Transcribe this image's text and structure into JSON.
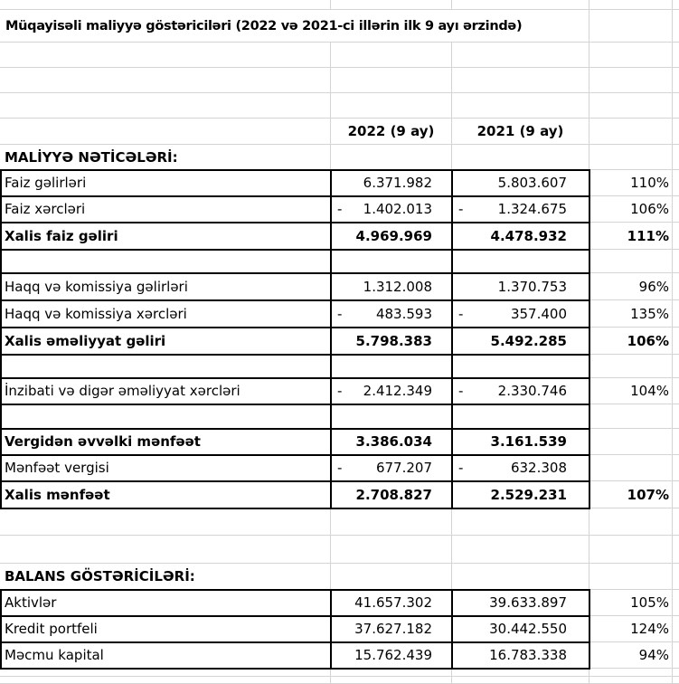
{
  "negative_prefix": "-",
  "rows": [
    {
      "type": "empty"
    },
    {
      "type": "title",
      "text": "Müqayisəli maliyyə göstəriciləri (2022 və 2021-ci illərin ilk 9 ayı ərzində)"
    },
    {
      "type": "empty"
    },
    {
      "type": "empty"
    },
    {
      "type": "empty"
    },
    {
      "type": "header",
      "col2022": "2022 (9 ay)",
      "col2021": "2021 (9 ay)"
    },
    {
      "type": "section",
      "label": "MALİYYƏ NƏTİCƏLƏRİ:"
    },
    {
      "type": "data",
      "label": "Faiz gəlirləri",
      "v2022": "6.371.982",
      "neg2022": false,
      "v2021": "5.803.607",
      "neg2021": false,
      "pct": "110%",
      "bold": false
    },
    {
      "type": "data",
      "label": "Faiz xərcləri",
      "v2022": "1.402.013",
      "neg2022": true,
      "v2021": "1.324.675",
      "neg2021": true,
      "pct": "106%",
      "bold": false
    },
    {
      "type": "data",
      "label": "Xalis faiz gəliri",
      "v2022": "4.969.969",
      "neg2022": false,
      "v2021": "4.478.932",
      "neg2021": false,
      "pct": "111%",
      "bold": true
    },
    {
      "type": "blank-bordered"
    },
    {
      "type": "data",
      "label": "Haqq və komissiya gəlirləri",
      "v2022": "1.312.008",
      "neg2022": false,
      "v2021": "1.370.753",
      "neg2021": false,
      "pct": "96%",
      "bold": false
    },
    {
      "type": "data",
      "label": "Haqq və komissiya xərcləri",
      "v2022": "483.593",
      "neg2022": true,
      "v2021": "357.400",
      "neg2021": true,
      "pct": "135%",
      "bold": false
    },
    {
      "type": "data",
      "label": "Xalis əməliyyat gəliri",
      "v2022": "5.798.383",
      "neg2022": false,
      "v2021": "5.492.285",
      "neg2021": false,
      "pct": "106%",
      "bold": true
    },
    {
      "type": "blank-bordered"
    },
    {
      "type": "data",
      "label": "İnzibati və digər əməliyyat xərcləri",
      "v2022": "2.412.349",
      "neg2022": true,
      "v2021": "2.330.746",
      "neg2021": true,
      "pct": "104%",
      "bold": false
    },
    {
      "type": "blank-bordered"
    },
    {
      "type": "data",
      "label": "Vergidən əvvəlki mənfəət",
      "v2022": "3.386.034",
      "neg2022": false,
      "v2021": "3.161.539",
      "neg2021": false,
      "pct": "",
      "bold": true
    },
    {
      "type": "data",
      "label": "Mənfəət vergisi",
      "v2022": "677.207",
      "neg2022": true,
      "v2021": "632.308",
      "neg2021": true,
      "pct": "",
      "bold": false
    },
    {
      "type": "data",
      "label": "Xalis mənfəət",
      "v2022": "2.708.827",
      "neg2022": false,
      "v2021": "2.529.231",
      "neg2021": false,
      "pct": "107%",
      "bold": true
    },
    {
      "type": "empty"
    },
    {
      "type": "empty"
    },
    {
      "type": "section",
      "label": "BALANS GÖSTƏRİCİLƏRİ:"
    },
    {
      "type": "data",
      "label": "Aktivlər",
      "v2022": "41.657.302",
      "neg2022": false,
      "v2021": "39.633.897",
      "neg2021": false,
      "pct": "105%",
      "bold": false
    },
    {
      "type": "data",
      "label": "Kredit portfeli",
      "v2022": "37.627.182",
      "neg2022": false,
      "v2021": "30.442.550",
      "neg2021": false,
      "pct": "124%",
      "bold": false
    },
    {
      "type": "data",
      "label": "Məcmu kapital",
      "v2022": "15.762.439",
      "neg2022": false,
      "v2021": "16.783.338",
      "neg2021": false,
      "pct": "94%",
      "bold": false
    },
    {
      "type": "empty"
    },
    {
      "type": "empty"
    }
  ]
}
